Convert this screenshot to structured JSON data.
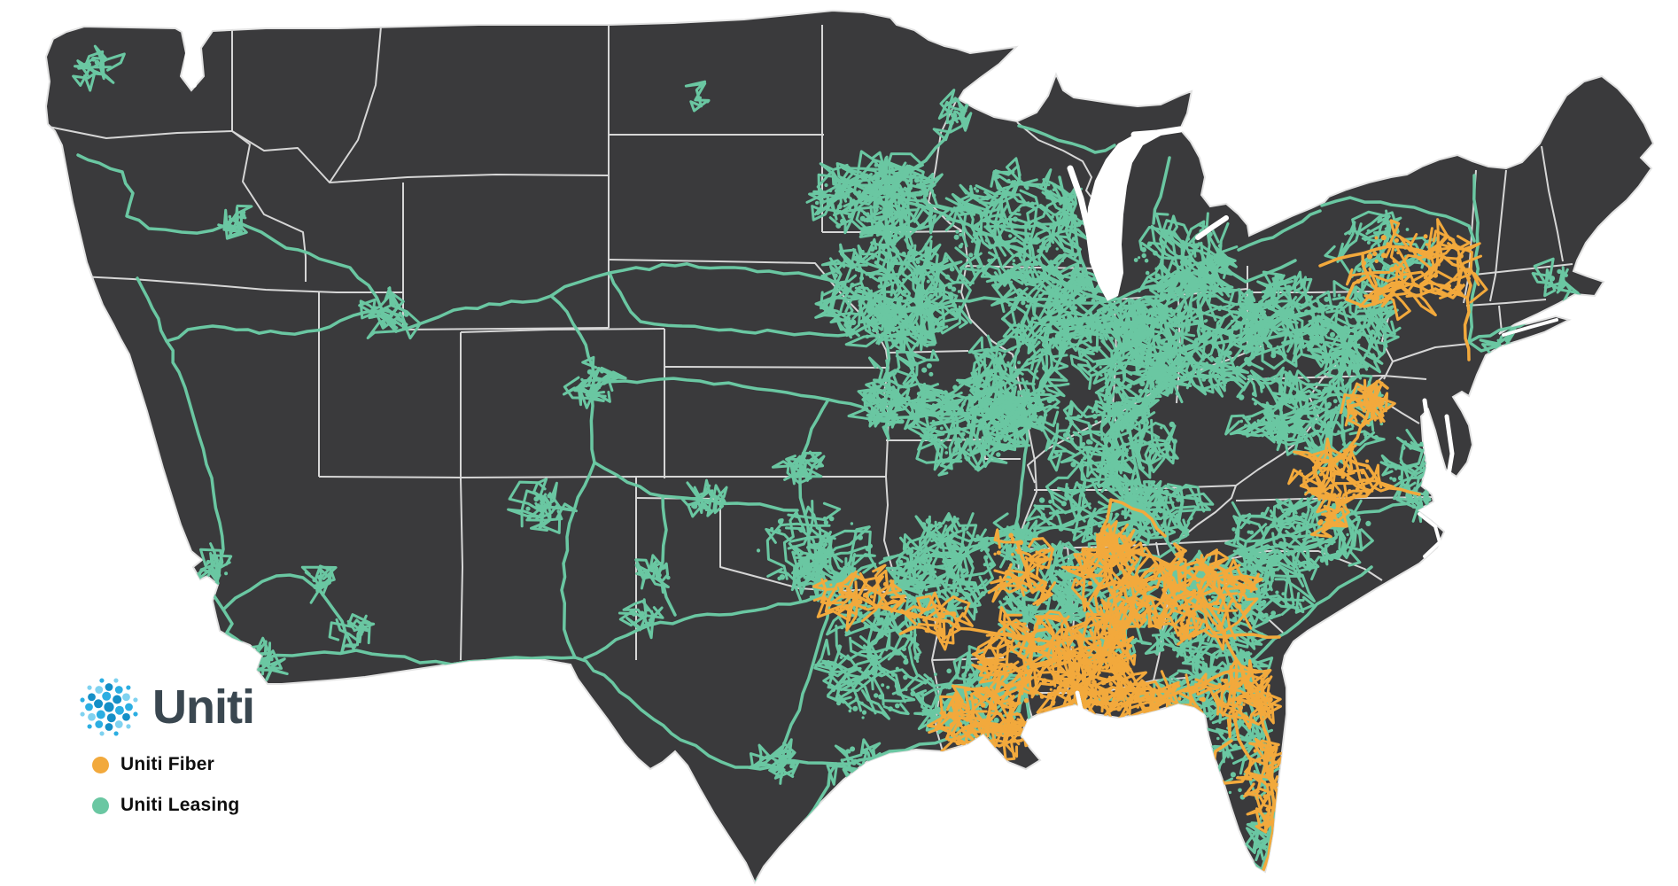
{
  "brand": {
    "name": "Uniti"
  },
  "legend": {
    "items": [
      {
        "id": "fiber",
        "label": "Uniti Fiber",
        "color": "#F2A93C"
      },
      {
        "id": "leasing",
        "label": "Uniti Leasing",
        "color": "#6AC7A2"
      }
    ]
  },
  "map": {
    "land_color": "#3A3A3C",
    "border_color": "#D6D6D6",
    "coast_color": "#E3E3E3",
    "water_color": "#FFFFFF",
    "logo_dot_colors": [
      "#2BAEE2",
      "#148FC7",
      "#7FD2F0"
    ],
    "wordmark_color": "#3A4750"
  }
}
